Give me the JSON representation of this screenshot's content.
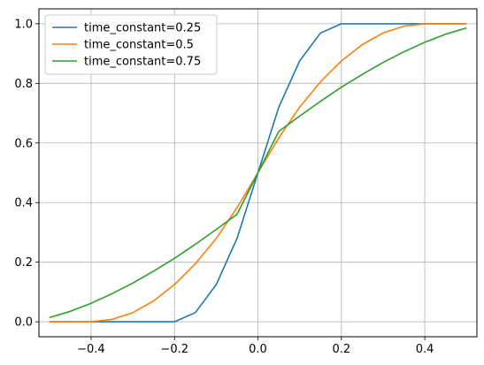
{
  "chart_data": {
    "type": "line",
    "title": "",
    "xlabel": "",
    "ylabel": "",
    "xlim": [
      -0.525,
      0.525
    ],
    "ylim": [
      -0.05,
      1.05
    ],
    "x_ticks": [
      -0.4,
      -0.2,
      0.0,
      0.2,
      0.4
    ],
    "y_ticks": [
      0.0,
      0.2,
      0.4,
      0.6,
      0.8,
      1.0
    ],
    "x_tick_labels": [
      "−0.4",
      "−0.2",
      "0.0",
      "0.2",
      "0.4"
    ],
    "y_tick_labels": [
      "0.0",
      "0.2",
      "0.4",
      "0.6",
      "0.8",
      "1.0"
    ],
    "grid": true,
    "legend_position": "top-left",
    "series": [
      {
        "name": "time_constant=0.25",
        "color": "#1f77b4",
        "x": [
          -0.5,
          -0.2,
          -0.15,
          -0.1,
          -0.05,
          0.0,
          0.05,
          0.1,
          0.15,
          0.2,
          0.5
        ],
        "y": [
          0.0,
          0.0,
          0.031,
          0.125,
          0.28,
          0.5,
          0.72,
          0.875,
          0.969,
          1.0,
          1.0
        ]
      },
      {
        "name": "time_constant=0.5",
        "color": "#ff7f0e",
        "x": [
          -0.5,
          -0.4,
          -0.35,
          -0.3,
          -0.25,
          -0.2,
          -0.15,
          -0.1,
          -0.05,
          0.0,
          0.05,
          0.1,
          0.15,
          0.2,
          0.25,
          0.3,
          0.35,
          0.4,
          0.5
        ],
        "y": [
          0.0,
          0.0,
          0.008,
          0.031,
          0.07,
          0.125,
          0.195,
          0.28,
          0.383,
          0.5,
          0.617,
          0.72,
          0.805,
          0.875,
          0.93,
          0.969,
          0.992,
          1.0,
          1.0
        ]
      },
      {
        "name": "time_constant=0.75",
        "color": "#2ca02c",
        "x": [
          -0.5,
          -0.45,
          -0.4,
          -0.35,
          -0.3,
          -0.25,
          -0.2,
          -0.15,
          -0.1,
          -0.05,
          0.0,
          0.05,
          0.1,
          0.15,
          0.2,
          0.25,
          0.3,
          0.35,
          0.4,
          0.45,
          0.5
        ],
        "y": [
          0.014,
          0.035,
          0.062,
          0.094,
          0.13,
          0.17,
          0.213,
          0.26,
          0.31,
          0.361,
          0.5,
          0.639,
          0.69,
          0.74,
          0.787,
          0.83,
          0.87,
          0.906,
          0.938,
          0.965,
          0.986
        ]
      }
    ]
  }
}
